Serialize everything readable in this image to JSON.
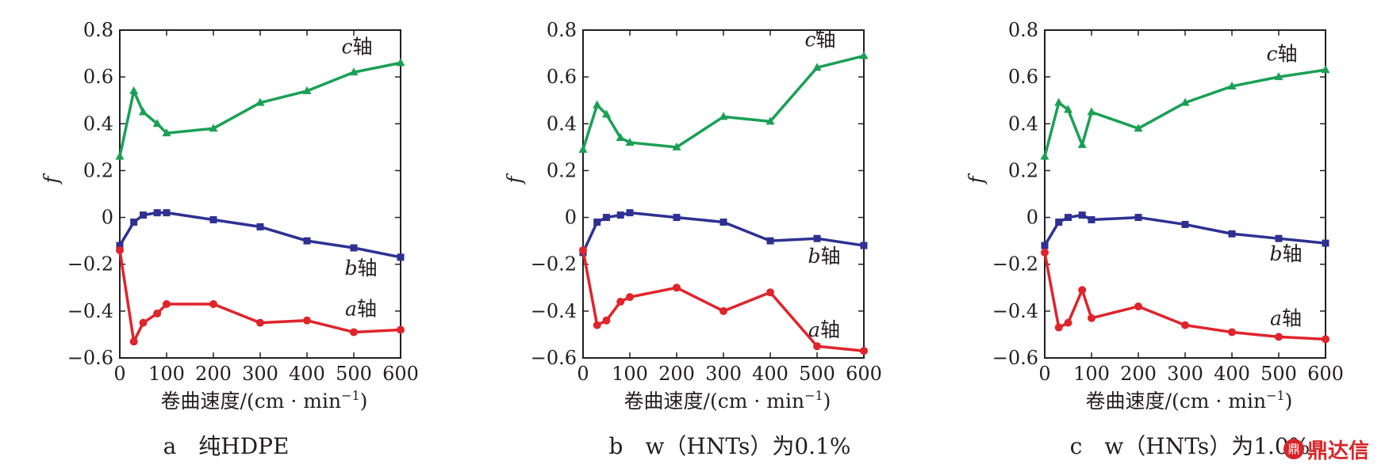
{
  "chart_data": [
    {
      "type": "line",
      "panel": "a",
      "caption": "a　纯HDPE",
      "xlabel": "卷曲速度/(cm · min",
      "xlabel_sup": "−1",
      "xlabel_end": ")",
      "ylabel": "f",
      "xlim": [
        0,
        600
      ],
      "ylim": [
        -0.6,
        0.8
      ],
      "xticks": [
        "0",
        "100",
        "200",
        "300",
        "400",
        "500",
        "600"
      ],
      "yticks": [
        "−0.6",
        "−0.4",
        "−0.2",
        "0",
        "0.2",
        "0.4",
        "0.6",
        "0.8"
      ],
      "x": [
        0,
        30,
        50,
        80,
        100,
        200,
        300,
        400,
        500,
        600
      ],
      "series": [
        {
          "name": "c轴",
          "color": "#1aa055",
          "marker": "triangle",
          "values": [
            0.26,
            0.54,
            0.45,
            0.4,
            0.36,
            0.38,
            0.49,
            0.54,
            0.62,
            0.66
          ]
        },
        {
          "name": "b轴",
          "color": "#2e3192",
          "marker": "square",
          "values": [
            -0.12,
            -0.02,
            0.01,
            0.02,
            0.02,
            -0.01,
            -0.04,
            -0.1,
            -0.13,
            -0.17
          ]
        },
        {
          "name": "a轴",
          "color": "#e0242b",
          "marker": "circle",
          "values": [
            -0.14,
            -0.53,
            -0.45,
            -0.41,
            -0.37,
            -0.37,
            -0.45,
            -0.44,
            -0.49,
            -0.48
          ]
        }
      ]
    },
    {
      "type": "line",
      "panel": "b",
      "caption": "b　w（HNTs）为0.1%",
      "xlabel": "卷曲速度/(cm · min",
      "xlabel_sup": "−1",
      "xlabel_end": ")",
      "ylabel": "f",
      "xlim": [
        0,
        600
      ],
      "ylim": [
        -0.6,
        0.8
      ],
      "xticks": [
        "0",
        "100",
        "200",
        "300",
        "400",
        "500",
        "600"
      ],
      "yticks": [
        "−0.6",
        "−0.4",
        "−0.2",
        "0",
        "0.2",
        "0.4",
        "0.6",
        "0.8"
      ],
      "x": [
        0,
        30,
        50,
        80,
        100,
        200,
        300,
        400,
        500,
        600
      ],
      "series": [
        {
          "name": "c轴",
          "color": "#1aa055",
          "marker": "triangle",
          "values": [
            0.29,
            0.48,
            0.44,
            0.34,
            0.32,
            0.3,
            0.43,
            0.41,
            0.64,
            0.69
          ]
        },
        {
          "name": "b轴",
          "color": "#2e3192",
          "marker": "square",
          "values": [
            -0.15,
            -0.02,
            0.0,
            0.01,
            0.02,
            0.0,
            -0.02,
            -0.1,
            -0.09,
            -0.12
          ]
        },
        {
          "name": "a轴",
          "color": "#e0242b",
          "marker": "circle",
          "values": [
            -0.14,
            -0.46,
            -0.44,
            -0.36,
            -0.34,
            -0.3,
            -0.4,
            -0.32,
            -0.55,
            -0.57
          ]
        }
      ]
    },
    {
      "type": "line",
      "panel": "c",
      "caption": "c　w（HNTs）为1.0%",
      "xlabel": "卷曲速度/(cm · min",
      "xlabel_sup": "−1",
      "xlabel_end": ")",
      "ylabel": "f",
      "xlim": [
        0,
        600
      ],
      "ylim": [
        -0.6,
        0.8
      ],
      "xticks": [
        "0",
        "100",
        "200",
        "300",
        "400",
        "500",
        "600"
      ],
      "yticks": [
        "−0.6",
        "−0.4",
        "−0.2",
        "0",
        "0.2",
        "0.4",
        "0.6",
        "0.8"
      ],
      "x": [
        0,
        30,
        50,
        80,
        100,
        200,
        300,
        400,
        500,
        600
      ],
      "series": [
        {
          "name": "c轴",
          "color": "#1aa055",
          "marker": "triangle",
          "values": [
            0.26,
            0.49,
            0.46,
            0.31,
            0.45,
            0.38,
            0.49,
            0.56,
            0.6,
            0.63
          ]
        },
        {
          "name": "b轴",
          "color": "#2e3192",
          "marker": "square",
          "values": [
            -0.12,
            -0.02,
            0.0,
            0.01,
            -0.01,
            0.0,
            -0.03,
            -0.07,
            -0.09,
            -0.11
          ]
        },
        {
          "name": "a轴",
          "color": "#e0242b",
          "marker": "circle",
          "values": [
            -0.15,
            -0.47,
            -0.45,
            -0.31,
            -0.43,
            -0.38,
            -0.46,
            -0.49,
            -0.51,
            -0.52
          ]
        }
      ]
    }
  ],
  "watermark": {
    "icon": "dingdaxin-logo-icon",
    "text": "鼎达信"
  }
}
